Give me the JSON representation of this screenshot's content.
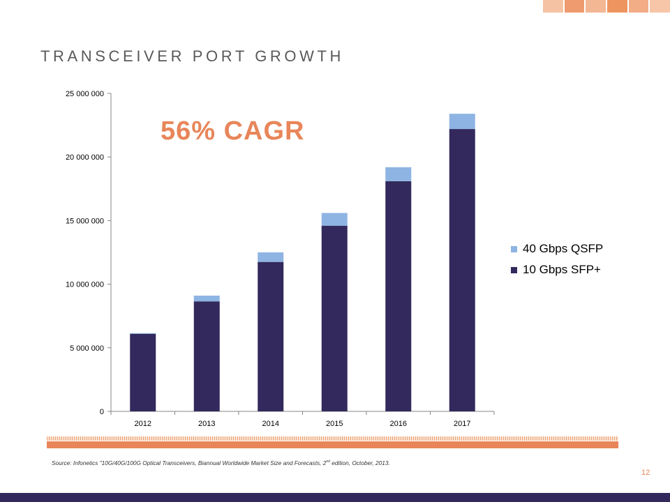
{
  "slide": {
    "title": "TRANSCEIVER PORT GROWTH",
    "callout": "56% CAGR",
    "source_text": "Source: Infonetics \"10G/40G/100G Optical Transceivers, Biannual Worldwide Market Size and Forecasts, 2",
    "source_sup": "nd",
    "source_tail": " edition, October, 2013.",
    "page_number": "12"
  },
  "colors": {
    "accent": "#e8865a",
    "navy": "#33295c",
    "light_blue": "#8eb4e3",
    "deco": [
      "#f6c2a4",
      "#ef9a6f",
      "#f4b794",
      "#ee955f",
      "#f2ac86",
      "#f7c6a8"
    ]
  },
  "chart_data": {
    "type": "bar",
    "stacked": true,
    "categories": [
      "2012",
      "2013",
      "2014",
      "2015",
      "2016",
      "2017"
    ],
    "series": [
      {
        "name": "10 Gbps SFP+",
        "color": "#33295c",
        "values": [
          6100000,
          8650000,
          11750000,
          14600000,
          18100000,
          22200000
        ]
      },
      {
        "name": "40 Gbps QSFP",
        "color": "#8eb4e3",
        "values": [
          50000,
          450000,
          750000,
          1000000,
          1100000,
          1200000
        ]
      }
    ],
    "ylim": [
      0,
      25000000
    ],
    "yticks": [
      "0",
      "5 000 000",
      "10 000 000",
      "15 000 000",
      "20 000 000",
      "25 000 000"
    ],
    "ytick_values": [
      0,
      5000000,
      10000000,
      15000000,
      20000000,
      25000000
    ],
    "legend": [
      {
        "name": "40 Gbps QSFP",
        "color": "#8eb4e3"
      },
      {
        "name": "10 Gbps SFP+",
        "color": "#33295c"
      }
    ],
    "legend_position": "right",
    "grid": false
  }
}
